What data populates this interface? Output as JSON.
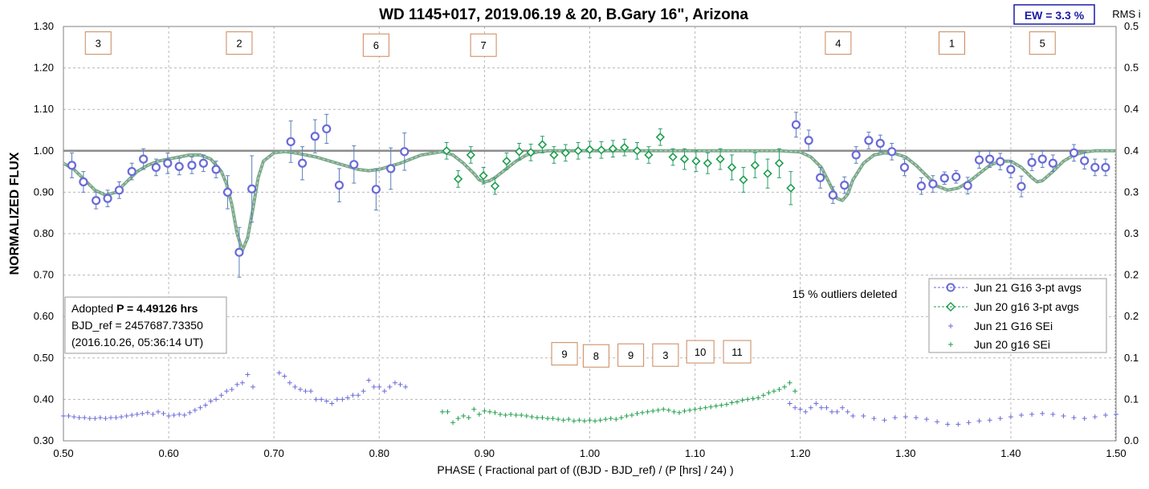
{
  "chart_data": {
    "type": "scatter",
    "title": "WD 1145+017, 2019.06.19 & 20, B.Gary 16\", Arizona",
    "ew_label": "EW = 3.3 %",
    "y2_title": "RMS i",
    "xlabel": "PHASE ( Fractional part of ((BJD - BJD_ref) / (P [hrs] / 24) )",
    "ylabel": "NORMALIZED FLUX",
    "xlim": [
      0.5,
      1.5
    ],
    "ylim": [
      0.3,
      1.3
    ],
    "y2lim": [
      0.0,
      0.5
    ],
    "x_ticks": [
      "0.50",
      "0.60",
      "0.70",
      "0.80",
      "0.90",
      "1.00",
      "1.10",
      "1.20",
      "1.30",
      "1.40",
      "1.50"
    ],
    "y_ticks": [
      "0.30",
      "0.40",
      "0.50",
      "0.60",
      "0.70",
      "0.80",
      "0.90",
      "1.00",
      "1.10",
      "1.20",
      "1.30"
    ],
    "y2_ticks": [
      "0.0",
      "0.1",
      "0.1",
      "0.2",
      "0.2",
      "0.3",
      "0.3",
      "0.4",
      "0.4",
      "0.5",
      "0.5"
    ],
    "grid": true,
    "legend_position": "lower-right",
    "outliers_note": "15 % outliers deleted",
    "info_lines": [
      "Adopted ",
      "P = 4.49126 hrs",
      "BJD_ref = 2457687.73350",
      "(2016.10.26, 05:36:14 UT)"
    ],
    "colors": {
      "jun21": "#6a6ad8",
      "jun20": "#1e9e4e",
      "model": "#7aa88a",
      "dip_box": "#c8875a",
      "ew": "#1a1aa8"
    },
    "dip_labels": [
      {
        "label": "3",
        "x": 0.533,
        "y": 1.26
      },
      {
        "label": "2",
        "x": 0.667,
        "y": 1.26
      },
      {
        "label": "6",
        "x": 0.797,
        "y": 1.255
      },
      {
        "label": "7",
        "x": 0.899,
        "y": 1.255
      },
      {
        "label": "4",
        "x": 1.236,
        "y": 1.26
      },
      {
        "label": "1",
        "x": 1.344,
        "y": 1.26
      },
      {
        "label": "5",
        "x": 1.43,
        "y": 1.26
      },
      {
        "label": "9",
        "x": 0.976,
        "y": 0.51
      },
      {
        "label": "8",
        "x": 1.006,
        "y": 0.505
      },
      {
        "label": "9",
        "x": 1.039,
        "y": 0.507
      },
      {
        "label": "3",
        "x": 1.072,
        "y": 0.507
      },
      {
        "label": "10",
        "x": 1.105,
        "y": 0.515
      },
      {
        "label": "11",
        "x": 1.14,
        "y": 0.515
      }
    ],
    "series": [
      {
        "name": "Jun 21 G16 3-pt avgs",
        "marker": "circle",
        "x": [
          0.508,
          0.519,
          0.531,
          0.542,
          0.553,
          0.565,
          0.576,
          0.588,
          0.599,
          0.61,
          0.622,
          0.633,
          0.645,
          0.656,
          0.667,
          0.679,
          0.716,
          0.727,
          0.739,
          0.75,
          0.762,
          0.776,
          0.797,
          0.811,
          0.824,
          1.196,
          1.208,
          1.219,
          1.231,
          1.242,
          1.253,
          1.265,
          1.276,
          1.287,
          1.299,
          1.315,
          1.326,
          1.337,
          1.348,
          1.359,
          1.37,
          1.38,
          1.39,
          1.4,
          1.41,
          1.42,
          1.43,
          1.44,
          1.46,
          1.47,
          1.48,
          1.49
        ],
        "y": [
          0.965,
          0.925,
          0.88,
          0.885,
          0.905,
          0.95,
          0.98,
          0.96,
          0.97,
          0.962,
          0.965,
          0.97,
          0.955,
          0.9,
          0.755,
          0.908,
          1.022,
          0.97,
          1.035,
          1.053,
          0.917,
          0.967,
          0.907,
          0.957,
          0.998,
          1.063,
          1.025,
          0.935,
          0.893,
          0.917,
          0.99,
          1.025,
          1.018,
          0.998,
          0.96,
          0.915,
          0.92,
          0.934,
          0.937,
          0.916,
          0.978,
          0.98,
          0.974,
          0.955,
          0.914,
          0.972,
          0.98,
          0.97,
          0.995,
          0.976,
          0.96,
          0.96
        ],
        "err": [
          0.03,
          0.025,
          0.02,
          0.02,
          0.02,
          0.02,
          0.025,
          0.02,
          0.025,
          0.02,
          0.02,
          0.02,
          0.02,
          0.04,
          0.06,
          0.08,
          0.05,
          0.04,
          0.04,
          0.035,
          0.04,
          0.045,
          0.05,
          0.05,
          0.045,
          0.03,
          0.025,
          0.025,
          0.02,
          0.02,
          0.02,
          0.02,
          0.02,
          0.02,
          0.02,
          0.02,
          0.02,
          0.015,
          0.015,
          0.02,
          0.02,
          0.02,
          0.02,
          0.02,
          0.025,
          0.02,
          0.02,
          0.02,
          0.02,
          0.02,
          0.02,
          0.02
        ]
      },
      {
        "name": "Jun 20 g16 3-pt avgs",
        "marker": "diamond",
        "x": [
          0.864,
          0.875,
          0.887,
          0.899,
          0.91,
          0.921,
          0.933,
          0.944,
          0.955,
          0.966,
          0.977,
          0.989,
          1.0,
          1.011,
          1.022,
          1.033,
          1.045,
          1.056,
          1.067,
          1.079,
          1.09,
          1.101,
          1.112,
          1.124,
          1.135,
          1.146,
          1.157,
          1.169,
          1.18,
          1.191
        ],
        "y": [
          1.0,
          0.932,
          0.99,
          0.94,
          0.915,
          0.975,
          0.998,
          0.996,
          1.015,
          0.99,
          0.995,
          1.0,
          1.003,
          1.002,
          1.005,
          1.008,
          1.0,
          0.99,
          1.033,
          0.985,
          0.98,
          0.975,
          0.97,
          0.98,
          0.96,
          0.93,
          0.965,
          0.945,
          0.97,
          0.91
        ],
        "err": [
          0.02,
          0.02,
          0.02,
          0.02,
          0.02,
          0.02,
          0.02,
          0.02,
          0.02,
          0.02,
          0.02,
          0.02,
          0.02,
          0.02,
          0.02,
          0.02,
          0.02,
          0.02,
          0.02,
          0.02,
          0.025,
          0.025,
          0.025,
          0.025,
          0.03,
          0.03,
          0.03,
          0.035,
          0.035,
          0.04
        ]
      },
      {
        "name": "Jun 21 G16 SEi",
        "marker": "plus",
        "axis": "right",
        "x": [
          0.5,
          0.505,
          0.51,
          0.515,
          0.52,
          0.525,
          0.53,
          0.535,
          0.54,
          0.545,
          0.55,
          0.555,
          0.56,
          0.565,
          0.57,
          0.575,
          0.58,
          0.585,
          0.59,
          0.595,
          0.6,
          0.605,
          0.61,
          0.615,
          0.62,
          0.625,
          0.63,
          0.635,
          0.64,
          0.645,
          0.65,
          0.655,
          0.66,
          0.665,
          0.67,
          0.675,
          0.68,
          0.705,
          0.71,
          0.715,
          0.72,
          0.725,
          0.73,
          0.735,
          0.74,
          0.745,
          0.75,
          0.755,
          0.76,
          0.765,
          0.77,
          0.775,
          0.78,
          0.785,
          0.79,
          0.795,
          0.8,
          0.805,
          0.81,
          0.815,
          0.82,
          0.825,
          1.19,
          1.195,
          1.2,
          1.205,
          1.21,
          1.215,
          1.22,
          1.225,
          1.23,
          1.235,
          1.24,
          1.245,
          1.25,
          1.26,
          1.27,
          1.28,
          1.29,
          1.3,
          1.31,
          1.32,
          1.33,
          1.34,
          1.35,
          1.36,
          1.37,
          1.38,
          1.39,
          1.4,
          1.41,
          1.42,
          1.43,
          1.44,
          1.45,
          1.46,
          1.47,
          1.48,
          1.49,
          1.5
        ],
        "y": [
          0.03,
          0.03,
          0.029,
          0.028,
          0.028,
          0.027,
          0.027,
          0.028,
          0.027,
          0.028,
          0.028,
          0.029,
          0.03,
          0.031,
          0.032,
          0.033,
          0.034,
          0.032,
          0.035,
          0.033,
          0.03,
          0.031,
          0.032,
          0.031,
          0.034,
          0.037,
          0.04,
          0.043,
          0.048,
          0.05,
          0.055,
          0.06,
          0.062,
          0.068,
          0.07,
          0.08,
          0.065,
          0.082,
          0.078,
          0.07,
          0.065,
          0.062,
          0.06,
          0.06,
          0.05,
          0.05,
          0.048,
          0.045,
          0.05,
          0.05,
          0.052,
          0.055,
          0.055,
          0.06,
          0.073,
          0.065,
          0.065,
          0.06,
          0.065,
          0.07,
          0.068,
          0.065,
          0.045,
          0.04,
          0.038,
          0.035,
          0.04,
          0.045,
          0.04,
          0.04,
          0.035,
          0.035,
          0.04,
          0.035,
          0.03,
          0.03,
          0.027,
          0.025,
          0.028,
          0.029,
          0.028,
          0.026,
          0.023,
          0.02,
          0.02,
          0.022,
          0.024,
          0.025,
          0.027,
          0.029,
          0.031,
          0.032,
          0.033,
          0.032,
          0.03,
          0.028,
          0.027,
          0.029,
          0.031,
          0.032
        ]
      },
      {
        "name": "Jun 20 g16 SEi",
        "marker": "plus",
        "axis": "right",
        "x": [
          0.86,
          0.865,
          0.87,
          0.875,
          0.88,
          0.885,
          0.89,
          0.895,
          0.9,
          0.905,
          0.91,
          0.915,
          0.92,
          0.925,
          0.93,
          0.935,
          0.94,
          0.945,
          0.95,
          0.955,
          0.96,
          0.965,
          0.97,
          0.975,
          0.98,
          0.985,
          0.99,
          0.995,
          1.0,
          1.005,
          1.01,
          1.015,
          1.02,
          1.025,
          1.03,
          1.035,
          1.04,
          1.045,
          1.05,
          1.055,
          1.06,
          1.065,
          1.07,
          1.075,
          1.08,
          1.085,
          1.09,
          1.095,
          1.1,
          1.105,
          1.11,
          1.115,
          1.12,
          1.125,
          1.13,
          1.135,
          1.14,
          1.145,
          1.15,
          1.155,
          1.16,
          1.165,
          1.17,
          1.175,
          1.18,
          1.185,
          1.19,
          1.195
        ],
        "y": [
          0.035,
          0.035,
          0.022,
          0.027,
          0.03,
          0.028,
          0.038,
          0.032,
          0.036,
          0.035,
          0.034,
          0.032,
          0.031,
          0.032,
          0.031,
          0.031,
          0.03,
          0.029,
          0.028,
          0.028,
          0.027,
          0.027,
          0.026,
          0.025,
          0.026,
          0.024,
          0.025,
          0.024,
          0.025,
          0.024,
          0.025,
          0.026,
          0.027,
          0.026,
          0.028,
          0.03,
          0.031,
          0.033,
          0.034,
          0.035,
          0.036,
          0.037,
          0.038,
          0.037,
          0.035,
          0.034,
          0.036,
          0.037,
          0.038,
          0.039,
          0.04,
          0.041,
          0.042,
          0.043,
          0.044,
          0.046,
          0.047,
          0.049,
          0.05,
          0.051,
          0.052,
          0.055,
          0.058,
          0.06,
          0.062,
          0.065,
          0.07,
          0.06
        ]
      },
      {
        "name": "",
        "marker": "line",
        "x": [
          0.5,
          0.51,
          0.52,
          0.53,
          0.54,
          0.55,
          0.56,
          0.57,
          0.58,
          0.59,
          0.6,
          0.61,
          0.62,
          0.63,
          0.64,
          0.65,
          0.655,
          0.66,
          0.665,
          0.67,
          0.675,
          0.68,
          0.685,
          0.69,
          0.7,
          0.71,
          0.72,
          0.74,
          0.76,
          0.78,
          0.79,
          0.8,
          0.82,
          0.84,
          0.86,
          0.87,
          0.88,
          0.89,
          0.895,
          0.9,
          0.905,
          0.91,
          0.92,
          0.93,
          0.94,
          0.95,
          0.96,
          0.98,
          1.0,
          1.05,
          1.1,
          1.15,
          1.18,
          1.2,
          1.21,
          1.22,
          1.23,
          1.235,
          1.24,
          1.245,
          1.25,
          1.26,
          1.27,
          1.28,
          1.29,
          1.3,
          1.31,
          1.32,
          1.33,
          1.34,
          1.35,
          1.36,
          1.37,
          1.38,
          1.39,
          1.4,
          1.41,
          1.42,
          1.425,
          1.43,
          1.44,
          1.45,
          1.46,
          1.47,
          1.48,
          1.49,
          1.5
        ],
        "y": [
          0.97,
          0.955,
          0.93,
          0.905,
          0.893,
          0.9,
          0.925,
          0.95,
          0.965,
          0.975,
          0.98,
          0.985,
          0.99,
          0.99,
          0.98,
          0.95,
          0.92,
          0.87,
          0.8,
          0.76,
          0.79,
          0.86,
          0.935,
          0.975,
          0.995,
          0.998,
          0.995,
          0.985,
          0.97,
          0.955,
          0.952,
          0.955,
          0.97,
          0.99,
          0.998,
          0.99,
          0.97,
          0.945,
          0.93,
          0.925,
          0.928,
          0.935,
          0.955,
          0.975,
          0.99,
          0.997,
          1.0,
          1.0,
          1.0,
          1.0,
          1.0,
          1.0,
          1.0,
          0.997,
          0.985,
          0.96,
          0.91,
          0.885,
          0.88,
          0.895,
          0.93,
          0.97,
          0.99,
          0.995,
          0.993,
          0.985,
          0.965,
          0.94,
          0.915,
          0.905,
          0.91,
          0.925,
          0.945,
          0.965,
          0.975,
          0.975,
          0.96,
          0.935,
          0.925,
          0.928,
          0.95,
          0.975,
          0.99,
          0.997,
          1.0,
          1.0,
          1.0
        ]
      }
    ]
  }
}
